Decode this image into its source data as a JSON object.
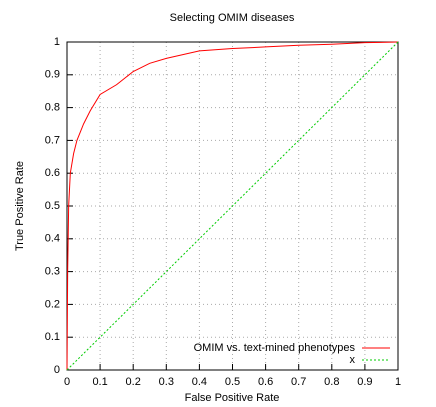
{
  "chart_data": {
    "type": "line",
    "title": "Selecting OMIM diseases",
    "xlabel": "False Positive Rate",
    "ylabel": "True Positive Rate",
    "xlim": [
      0,
      1
    ],
    "ylim": [
      0,
      1
    ],
    "xticks": [
      0,
      0.1,
      0.2,
      0.3,
      0.4,
      0.5,
      0.6,
      0.7,
      0.8,
      0.9,
      1
    ],
    "yticks": [
      0,
      0.1,
      0.2,
      0.3,
      0.4,
      0.5,
      0.6,
      0.7,
      0.8,
      0.9,
      1
    ],
    "grid": true,
    "legend": "bottom-right",
    "series": [
      {
        "name": "OMIM vs. text-mined phenotypes",
        "color": "#ff0000",
        "dash": false,
        "x": [
          0,
          0.002,
          0.005,
          0.01,
          0.02,
          0.03,
          0.05,
          0.07,
          0.1,
          0.15,
          0.2,
          0.25,
          0.3,
          0.4,
          0.5,
          0.6,
          0.7,
          0.8,
          0.9,
          1
        ],
        "values": [
          0,
          0.3,
          0.5,
          0.6,
          0.66,
          0.7,
          0.75,
          0.79,
          0.84,
          0.87,
          0.91,
          0.935,
          0.95,
          0.973,
          0.98,
          0.985,
          0.99,
          0.993,
          0.998,
          1
        ]
      },
      {
        "name": "x",
        "color": "#00cc00",
        "dash": true,
        "x": [
          0,
          1
        ],
        "values": [
          0,
          1
        ]
      }
    ]
  }
}
